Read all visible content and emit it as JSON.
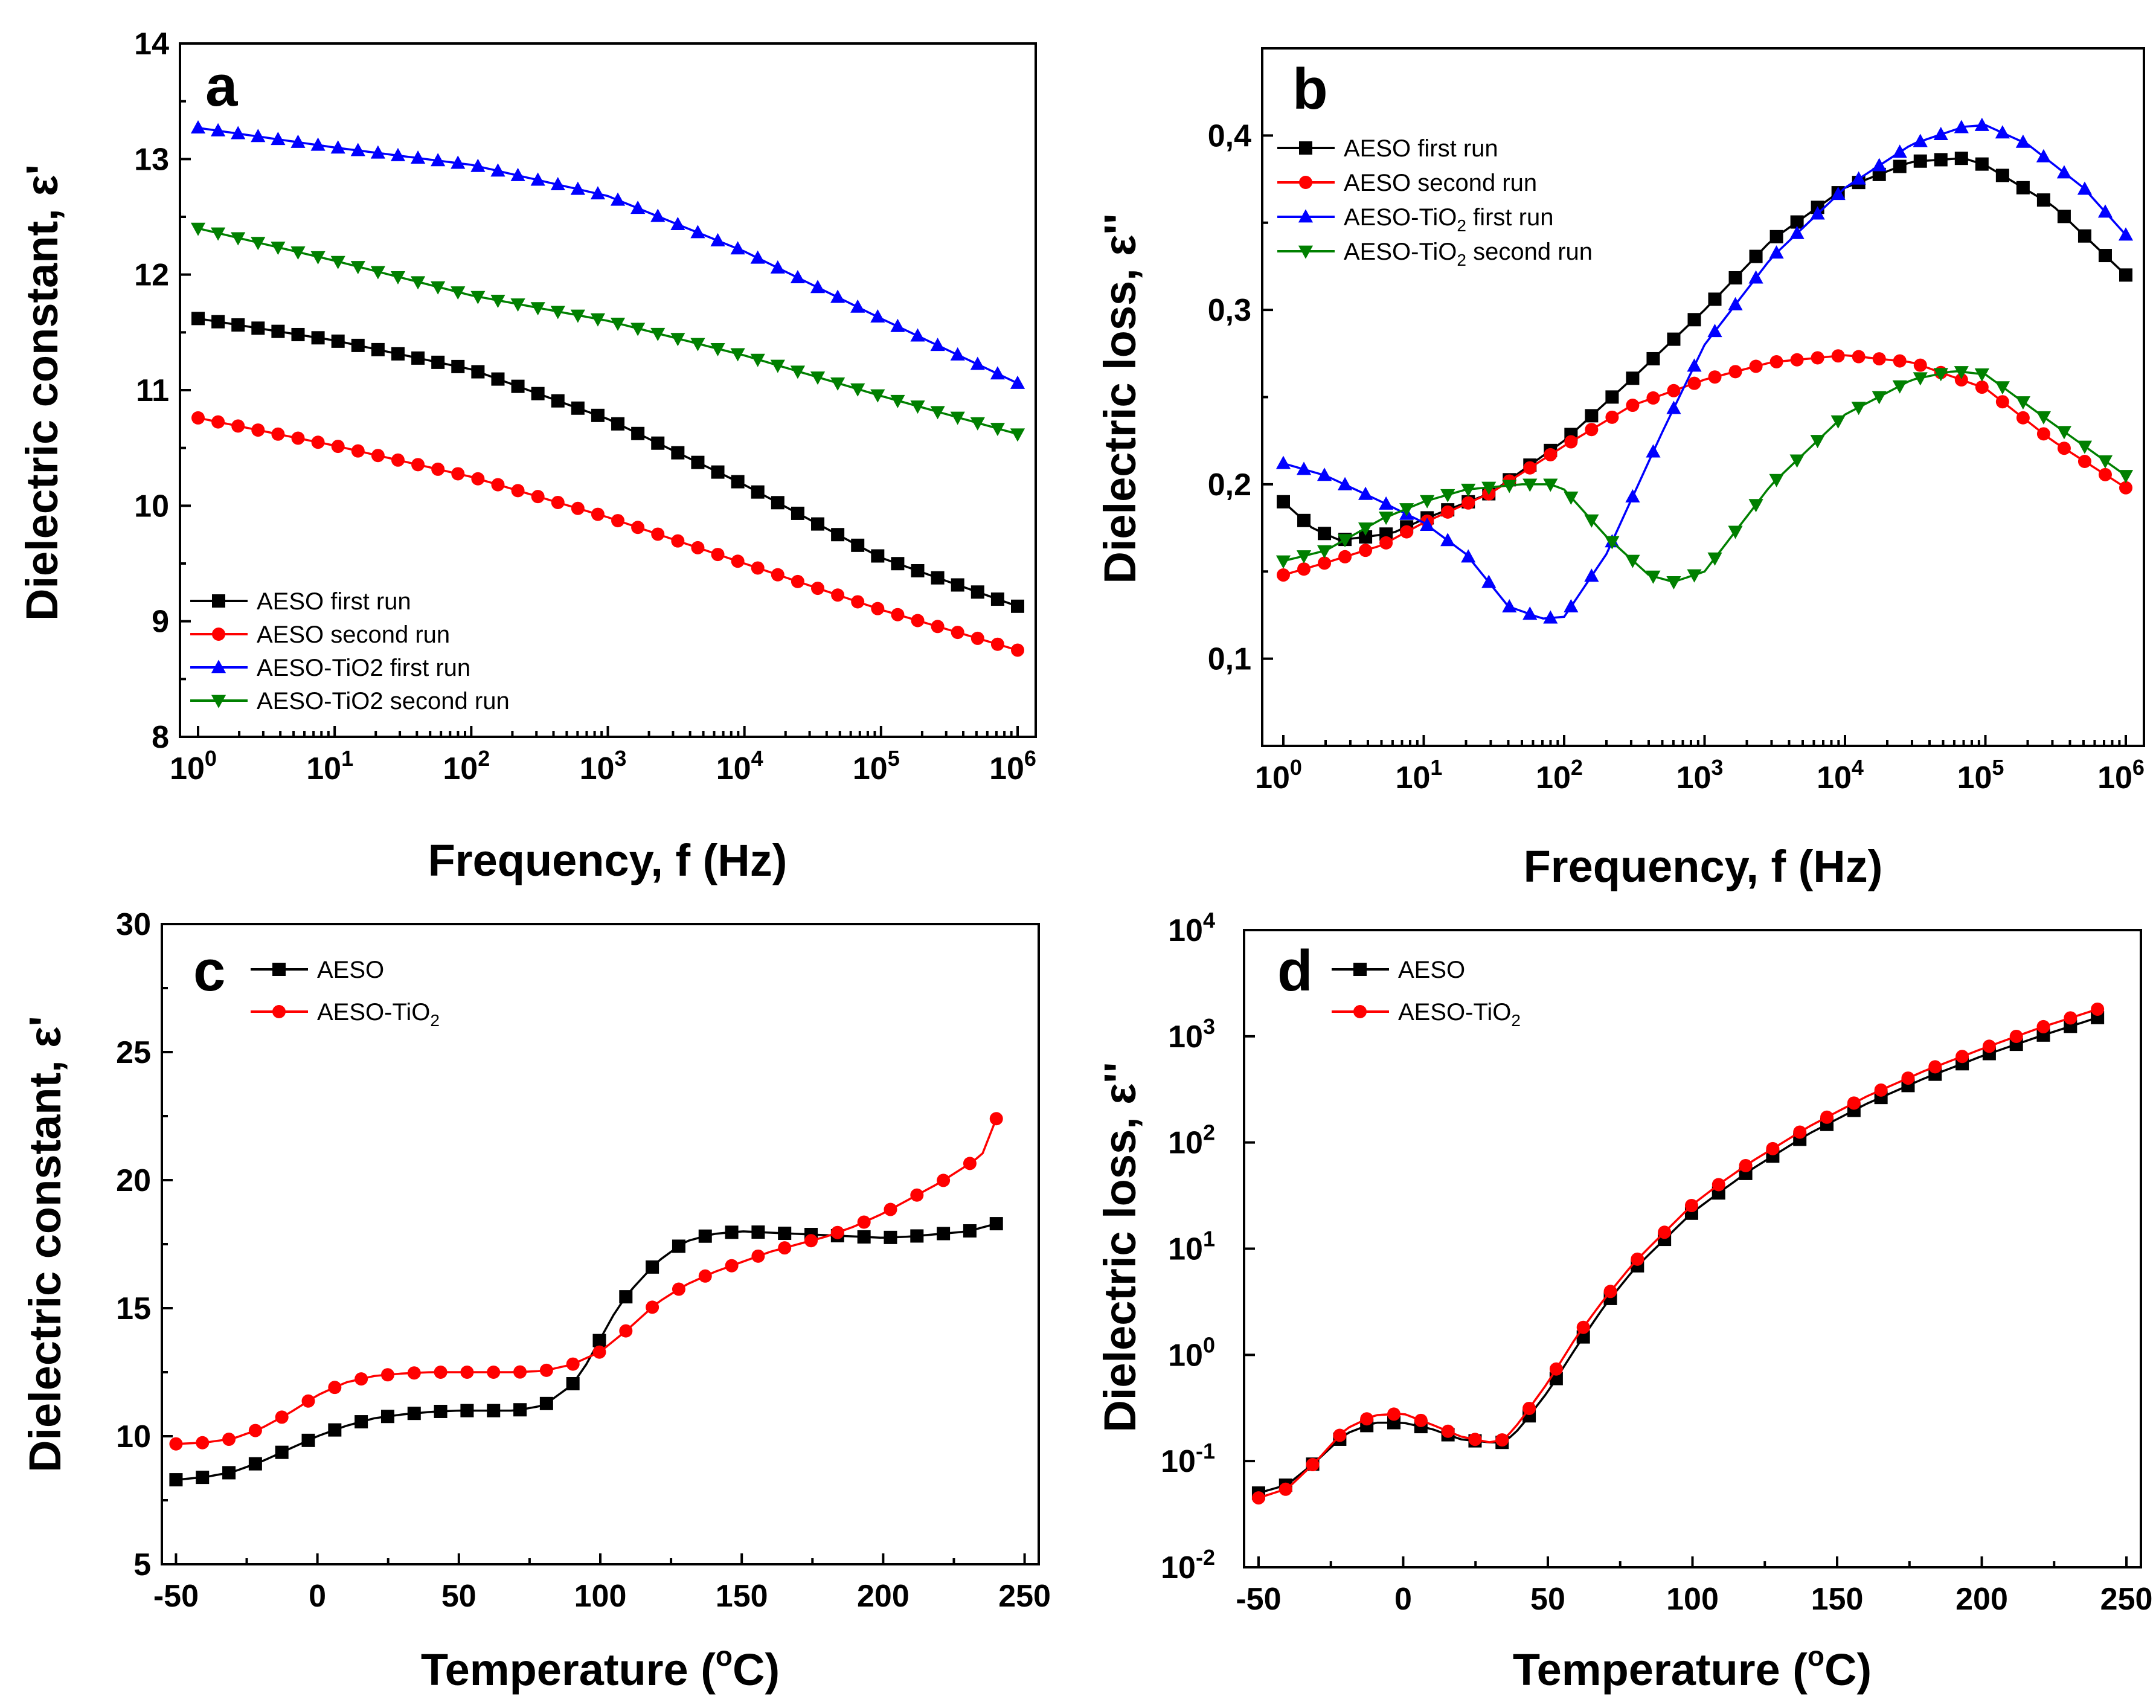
{
  "chart_data": [
    {
      "id": "a",
      "panel_label": "a",
      "type": "line",
      "xscale": "log",
      "xlim": [
        1,
        1000000
      ],
      "ylim": [
        8,
        14
      ],
      "xlabel": "Frequency, f (Hz)",
      "ylabel": "Dielectric constant, ε'",
      "xticks": [
        {
          "value": 1,
          "base": "10",
          "exp": "0"
        },
        {
          "value": 10,
          "base": "10",
          "exp": "1"
        },
        {
          "value": 100,
          "base": "10",
          "exp": "2"
        },
        {
          "value": 1000,
          "base": "10",
          "exp": "3"
        },
        {
          "value": 10000,
          "base": "10",
          "exp": "4"
        },
        {
          "value": 100000,
          "base": "10",
          "exp": "5"
        },
        {
          "value": 1000000,
          "base": "10",
          "exp": "6"
        }
      ],
      "yticks": [
        {
          "value": 8,
          "label": "8"
        },
        {
          "value": 9,
          "label": "9"
        },
        {
          "value": 10,
          "label": "10"
        },
        {
          "value": 11,
          "label": "11"
        },
        {
          "value": 12,
          "label": "12"
        },
        {
          "value": 13,
          "label": "13"
        },
        {
          "value": 14,
          "label": "14"
        }
      ],
      "legend_position": "bottom-left",
      "series": [
        {
          "name": "AESO first run",
          "color": "#000000",
          "marker": "square",
          "x": [
            1,
            10,
            100,
            1000,
            10000,
            100000,
            1000000
          ],
          "y": [
            11.62,
            11.43,
            11.18,
            10.75,
            10.18,
            9.55,
            9.13
          ]
        },
        {
          "name": "AESO second run",
          "color": "#ff0000",
          "marker": "circle",
          "x": [
            1,
            10,
            100,
            1000,
            10000,
            100000,
            1000000
          ],
          "y": [
            10.76,
            10.52,
            10.25,
            9.9,
            9.5,
            9.1,
            8.75
          ]
        },
        {
          "name": "AESO-TiO2 first run",
          "color": "#0000ff",
          "marker": "triangle-up",
          "x": [
            1,
            10,
            100,
            1000,
            10000,
            100000,
            1000000
          ],
          "y": [
            13.27,
            13.1,
            12.95,
            12.68,
            12.2,
            11.62,
            11.06
          ]
        },
        {
          "name": "AESO-TiO2 second run",
          "color": "#008000",
          "marker": "triangle-down",
          "x": [
            1,
            10,
            100,
            1000,
            10000,
            100000,
            1000000
          ],
          "y": [
            12.4,
            12.12,
            11.82,
            11.6,
            11.3,
            10.95,
            10.62
          ]
        }
      ]
    },
    {
      "id": "b",
      "panel_label": "b",
      "type": "line",
      "xscale": "log",
      "xlim": [
        1,
        1000000
      ],
      "ylim": [
        0.05,
        0.45
      ],
      "xlabel": "Frequency, f (Hz)",
      "ylabel": "Dielectric loss, ε''",
      "xticks": [
        {
          "value": 1,
          "base": "10",
          "exp": "0"
        },
        {
          "value": 10,
          "base": "10",
          "exp": "1"
        },
        {
          "value": 100,
          "base": "10",
          "exp": "2"
        },
        {
          "value": 1000,
          "base": "10",
          "exp": "3"
        },
        {
          "value": 10000,
          "base": "10",
          "exp": "4"
        },
        {
          "value": 100000,
          "base": "10",
          "exp": "5"
        },
        {
          "value": 1000000,
          "base": "10",
          "exp": "6"
        }
      ],
      "yticks": [
        {
          "value": 0.1,
          "label": "0,1"
        },
        {
          "value": 0.2,
          "label": "0,2"
        },
        {
          "value": 0.3,
          "label": "0,3"
        },
        {
          "value": 0.4,
          "label": "0,4"
        }
      ],
      "legend_position": "top-left",
      "series": [
        {
          "name": "AESO first run",
          "name_main": "AESO first run",
          "name_sub": "",
          "name_rest": "",
          "color": "#000000",
          "marker": "square",
          "x": [
            1,
            1.6,
            2.5,
            4,
            6,
            10,
            30,
            100,
            300,
            1000,
            3000,
            10000,
            30000,
            70000,
            100000,
            300000,
            1000000
          ],
          "y": [
            0.19,
            0.175,
            0.168,
            0.17,
            0.172,
            0.18,
            0.195,
            0.225,
            0.26,
            0.3,
            0.34,
            0.37,
            0.385,
            0.387,
            0.383,
            0.36,
            0.32
          ]
        },
        {
          "name": "AESO second run",
          "name_main": "AESO second run",
          "name_sub": "",
          "name_rest": "",
          "color": "#ff0000",
          "marker": "circle",
          "x": [
            1,
            2,
            5,
            10,
            30,
            100,
            300,
            1000,
            3000,
            10000,
            30000,
            100000,
            300000,
            1000000
          ],
          "y": [
            0.148,
            0.155,
            0.165,
            0.178,
            0.195,
            0.222,
            0.245,
            0.26,
            0.27,
            0.274,
            0.27,
            0.255,
            0.225,
            0.198
          ]
        },
        {
          "name": "AESO-TiO2 first run",
          "name_main": "AESO-TiO",
          "name_sub": "2",
          "name_rest": " first run",
          "color": "#0000ff",
          "marker": "triangle-up",
          "x": [
            1,
            2,
            5,
            10,
            20,
            40,
            70,
            100,
            200,
            500,
            1000,
            3000,
            10000,
            30000,
            70000,
            100000,
            200000,
            500000,
            1000000
          ],
          "y": [
            0.212,
            0.205,
            0.19,
            0.178,
            0.16,
            0.13,
            0.123,
            0.124,
            0.16,
            0.23,
            0.28,
            0.33,
            0.37,
            0.395,
            0.405,
            0.406,
            0.395,
            0.37,
            0.343
          ]
        },
        {
          "name": "AESO-TiO2 second run",
          "name_main": "AESO-TiO",
          "name_sub": "2",
          "name_rest": " second run",
          "color": "#008000",
          "marker": "triangle-down",
          "x": [
            1,
            2,
            5,
            10,
            20,
            50,
            80,
            100,
            200,
            400,
            600,
            1000,
            3000,
            10000,
            30000,
            60000,
            100000,
            300000,
            1000000
          ],
          "y": [
            0.156,
            0.162,
            0.18,
            0.19,
            0.197,
            0.2,
            0.2,
            0.197,
            0.17,
            0.148,
            0.144,
            0.15,
            0.2,
            0.24,
            0.26,
            0.265,
            0.263,
            0.235,
            0.205
          ]
        }
      ]
    },
    {
      "id": "c",
      "panel_label": "c",
      "type": "line",
      "xscale": "linear",
      "xlim": [
        -55,
        255
      ],
      "ylim": [
        5,
        30
      ],
      "xlabel_main": "Temperature (",
      "xlabel_sup": "o",
      "xlabel_rest": "C)",
      "ylabel": "Dielectric constant, ε'",
      "xticks": [
        {
          "value": -50,
          "label": "-50"
        },
        {
          "value": 0,
          "label": "0"
        },
        {
          "value": 50,
          "label": "50"
        },
        {
          "value": 100,
          "label": "100"
        },
        {
          "value": 150,
          "label": "150"
        },
        {
          "value": 200,
          "label": "200"
        },
        {
          "value": 250,
          "label": "250"
        }
      ],
      "yticks": [
        {
          "value": 5,
          "label": "5"
        },
        {
          "value": 10,
          "label": "10"
        },
        {
          "value": 15,
          "label": "15"
        },
        {
          "value": 20,
          "label": "20"
        },
        {
          "value": 25,
          "label": "25"
        },
        {
          "value": 30,
          "label": "30"
        }
      ],
      "legend_position": "top-left",
      "series": [
        {
          "name": "AESO",
          "name_main": "AESO",
          "name_sub": "",
          "name_rest": "",
          "color": "#000000",
          "marker": "square",
          "x": [
            -50,
            -40,
            -30,
            -20,
            -10,
            0,
            10,
            20,
            30,
            40,
            50,
            60,
            70,
            80,
            90,
            95,
            100,
            105,
            110,
            120,
            130,
            140,
            150,
            160,
            170,
            180,
            190,
            200,
            210,
            220,
            230,
            240
          ],
          "y": [
            8.3,
            8.4,
            8.6,
            9.0,
            9.5,
            10.0,
            10.4,
            10.7,
            10.85,
            10.95,
            11.0,
            11.0,
            11.0,
            11.2,
            12.0,
            12.8,
            13.8,
            14.8,
            15.6,
            16.8,
            17.6,
            17.9,
            18.0,
            17.95,
            17.9,
            17.85,
            17.8,
            17.75,
            17.8,
            17.9,
            18.0,
            18.3
          ]
        },
        {
          "name": "AESO-TiO2",
          "name_main": "AESO-TiO",
          "name_sub": "2",
          "name_rest": "",
          "color": "#ff0000",
          "marker": "circle",
          "x": [
            -50,
            -40,
            -30,
            -20,
            -10,
            0,
            10,
            20,
            30,
            40,
            50,
            60,
            70,
            80,
            90,
            100,
            110,
            120,
            130,
            140,
            150,
            160,
            170,
            180,
            190,
            200,
            210,
            220,
            230,
            235,
            240
          ],
          "y": [
            9.7,
            9.75,
            9.9,
            10.3,
            10.9,
            11.6,
            12.1,
            12.35,
            12.45,
            12.5,
            12.5,
            12.5,
            12.5,
            12.55,
            12.8,
            13.3,
            14.2,
            15.2,
            15.9,
            16.4,
            16.8,
            17.2,
            17.5,
            17.8,
            18.2,
            18.7,
            19.3,
            19.9,
            20.6,
            21.0,
            22.4
          ]
        }
      ]
    },
    {
      "id": "d",
      "panel_label": "d",
      "type": "line",
      "xscale": "linear",
      "yscale": "log",
      "xlim": [
        -55,
        255
      ],
      "ylim": [
        0.01,
        10000
      ],
      "xlabel_main": "Temperature (",
      "xlabel_sup": "o",
      "xlabel_rest": "C)",
      "ylabel": "Dielectric loss, ε''",
      "xticks": [
        {
          "value": -50,
          "label": "-50"
        },
        {
          "value": 0,
          "label": "0"
        },
        {
          "value": 50,
          "label": "50"
        },
        {
          "value": 100,
          "label": "100"
        },
        {
          "value": 150,
          "label": "150"
        },
        {
          "value": 200,
          "label": "200"
        },
        {
          "value": 250,
          "label": "250"
        }
      ],
      "yticks": [
        {
          "value": 0.01,
          "base": "10",
          "exp": "-2"
        },
        {
          "value": 0.1,
          "base": "10",
          "exp": "-1"
        },
        {
          "value": 1,
          "base": "10",
          "exp": "0"
        },
        {
          "value": 10,
          "base": "10",
          "exp": "1"
        },
        {
          "value": 100,
          "base": "10",
          "exp": "2"
        },
        {
          "value": 1000,
          "base": "10",
          "exp": "3"
        },
        {
          "value": 10000,
          "base": "10",
          "exp": "4"
        }
      ],
      "legend_position": "top-left",
      "series": [
        {
          "name": "AESO",
          "name_main": "AESO",
          "name_sub": "",
          "name_rest": "",
          "color": "#000000",
          "marker": "square",
          "x": [
            -50,
            -40,
            -30,
            -20,
            -10,
            0,
            10,
            20,
            30,
            35,
            40,
            50,
            60,
            70,
            80,
            90,
            100,
            110,
            120,
            140,
            160,
            180,
            200,
            220,
            240
          ],
          "y": [
            0.05,
            0.06,
            0.1,
            0.18,
            0.23,
            0.23,
            0.2,
            0.16,
            0.15,
            0.15,
            0.2,
            0.45,
            1.2,
            3.0,
            6.5,
            12,
            22,
            35,
            55,
            120,
            230,
            400,
            650,
            1000,
            1500
          ]
        },
        {
          "name": "AESO-TiO2",
          "name_main": "AESO-TiO",
          "name_sub": "2",
          "name_rest": "",
          "color": "#ff0000",
          "marker": "circle",
          "x": [
            -50,
            -40,
            -30,
            -20,
            -10,
            0,
            10,
            20,
            30,
            35,
            40,
            50,
            60,
            70,
            80,
            90,
            100,
            110,
            120,
            140,
            160,
            180,
            200,
            220,
            240
          ],
          "y": [
            0.045,
            0.055,
            0.1,
            0.2,
            0.27,
            0.28,
            0.22,
            0.17,
            0.15,
            0.16,
            0.23,
            0.55,
            1.5,
            3.5,
            7.5,
            14,
            26,
            42,
            65,
            140,
            270,
            470,
            760,
            1200,
            1800
          ]
        }
      ]
    }
  ]
}
